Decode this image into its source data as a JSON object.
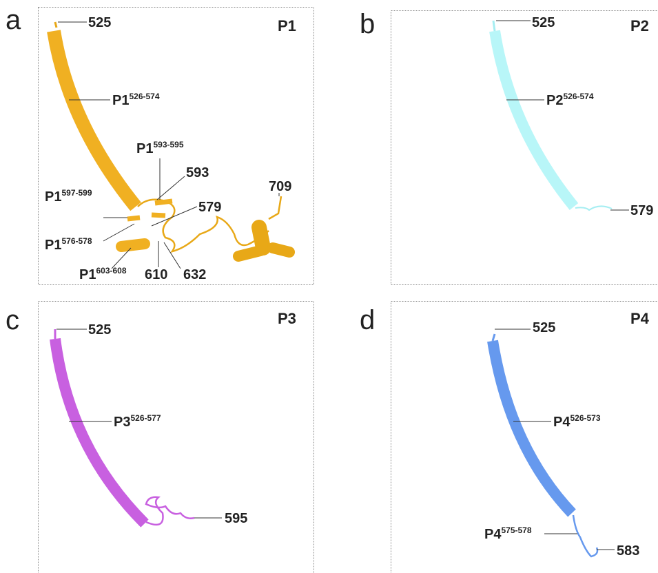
{
  "panels": [
    {
      "letter": "a",
      "title": "P1",
      "labels": [
        {
          "text": "525"
        },
        {
          "text": "P1",
          "sup": "526-574"
        },
        {
          "text": "P1",
          "sup": "593-595"
        },
        {
          "text": "593"
        },
        {
          "text": "709"
        },
        {
          "text": "579"
        },
        {
          "text": "P1",
          "sup": "597-599"
        },
        {
          "text": "P1",
          "sup": "576-578"
        },
        {
          "text": "P1",
          "sup": "603-608"
        },
        {
          "text": "610"
        },
        {
          "text": "632"
        }
      ]
    },
    {
      "letter": "b",
      "title": "P2",
      "labels": [
        {
          "text": "525"
        },
        {
          "text": "P2",
          "sup": "526-574"
        },
        {
          "text": "579"
        }
      ]
    },
    {
      "letter": "c",
      "title": "P3",
      "labels": [
        {
          "text": "525"
        },
        {
          "text": "P3",
          "sup": "526-577"
        },
        {
          "text": "595"
        }
      ]
    },
    {
      "letter": "d",
      "title": "P4",
      "labels": [
        {
          "text": "525"
        },
        {
          "text": "P4",
          "sup": "526-573"
        },
        {
          "text": "P4",
          "sup": "575-578"
        },
        {
          "text": "583"
        }
      ]
    }
  ]
}
